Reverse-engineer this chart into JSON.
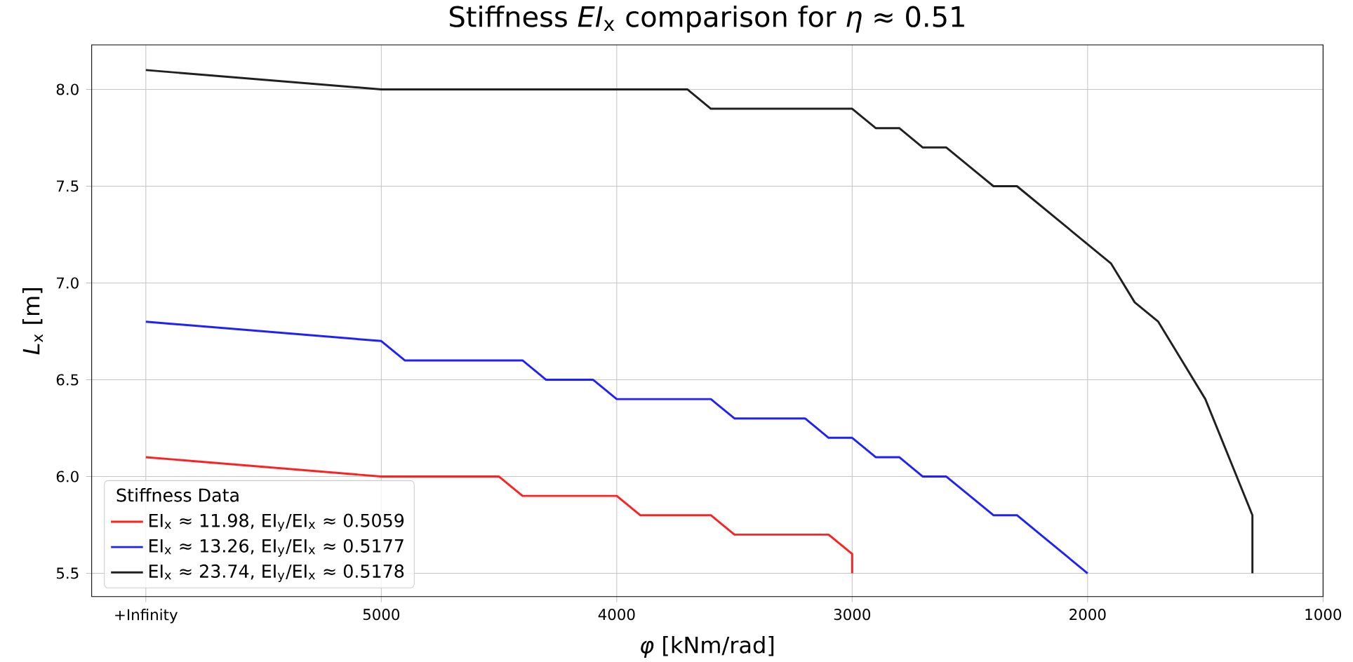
{
  "chart_data": {
    "type": "line",
    "title": "Stiffness *EI*$_{x}$ comparison for *η* ≈ 0.51",
    "xlabel": "*φ* [kNm/rad]",
    "ylabel": "*L*$_{x}$ [m]",
    "legend_title": "Stiffness Data",
    "xlim": [
      6230,
      1000
    ],
    "ylim": [
      5.38,
      8.23
    ],
    "xticks": [
      {
        "value": 6000,
        "label": "+Infinity"
      },
      5000,
      4000,
      3000,
      2000,
      1000
    ],
    "yticks": [
      5.5,
      {
        "value": 6,
        "label": "6.0"
      },
      6.5,
      {
        "value": 7,
        "label": "7.0"
      },
      7.5,
      {
        "value": 8,
        "label": "8.0"
      }
    ],
    "grid": true,
    "legend": "bottom left",
    "marker": "none",
    "line_style": "solid",
    "series": [
      {
        "name": "EI$_{x}$ ≈ 11.98, EI$_{y}$/EI$_{x}$ ≈ 0.5059",
        "color": "#ff2020",
        "x": [
          6000,
          5000,
          4500,
          4400,
          4000,
          3900,
          3600,
          3500,
          3100,
          3000,
          3000
        ],
        "values": [
          6.1,
          6.0,
          6.0,
          5.9,
          5.9,
          5.8,
          5.8,
          5.7,
          5.7,
          5.6,
          5.5
        ]
      },
      {
        "name": "EI$_{x}$ ≈ 13.26, EI$_{y}$/EI$_{x}$ ≈ 0.5177",
        "color": "#2020ff",
        "x": [
          6000,
          5000,
          4900,
          4400,
          4300,
          4100,
          4000,
          3600,
          3500,
          3200,
          3100,
          3000,
          2900,
          2800,
          2700,
          2600,
          2400,
          2300,
          2000
        ],
        "values": [
          6.8,
          6.7,
          6.6,
          6.6,
          6.5,
          6.5,
          6.4,
          6.4,
          6.3,
          6.3,
          6.2,
          6.2,
          6.1,
          6.1,
          6.0,
          6.0,
          5.8,
          5.8,
          5.5
        ]
      },
      {
        "name": "EI$_{x}$ ≈ 23.74, EI$_{y}$/EI$_{x}$ ≈ 0.5178",
        "color": "#202020",
        "x": [
          6000,
          5000,
          3700,
          3600,
          3000,
          2900,
          2800,
          2700,
          2600,
          2400,
          2300,
          1900,
          1800,
          1700,
          1500,
          1300,
          1300
        ],
        "values": [
          8.1,
          8.0,
          8.0,
          7.9,
          7.9,
          7.8,
          7.8,
          7.7,
          7.7,
          7.5,
          7.5,
          7.1,
          6.9,
          6.8,
          6.4,
          5.8,
          5.5
        ]
      }
    ]
  }
}
